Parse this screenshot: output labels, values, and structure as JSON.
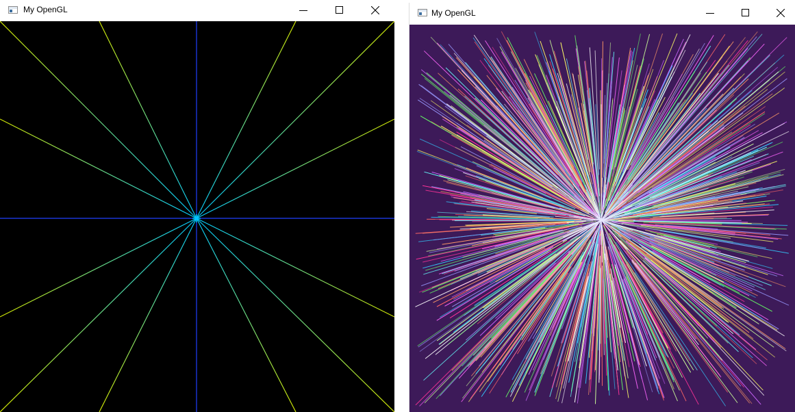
{
  "windows": [
    {
      "title": "My OpenGL",
      "background": "#000000",
      "icons": {
        "app": "app-window-icon",
        "minimize": "minimize-icon",
        "maximize": "maximize-icon",
        "close": "close-icon"
      }
    },
    {
      "title": "My OpenGL",
      "background": "#3d1a59",
      "icons": {
        "app": "app-window-icon",
        "minimize": "minimize-icon",
        "maximize": "maximize-icon",
        "close": "close-icon"
      }
    }
  ],
  "colors": {
    "titlebar": "#ffffff",
    "left_ray_center": "#00c8ff",
    "left_ray_edge": "#d2e600",
    "left_axis": "#2040ff",
    "right_ray_palette": [
      "#ff66ff",
      "#66ffff",
      "#ffffff",
      "#66ff66",
      "#ff6666",
      "#9999ff",
      "#ffff66",
      "#cc66ff",
      "#ff9966",
      "#33ccff",
      "#ccff99",
      "#ff3399"
    ]
  }
}
